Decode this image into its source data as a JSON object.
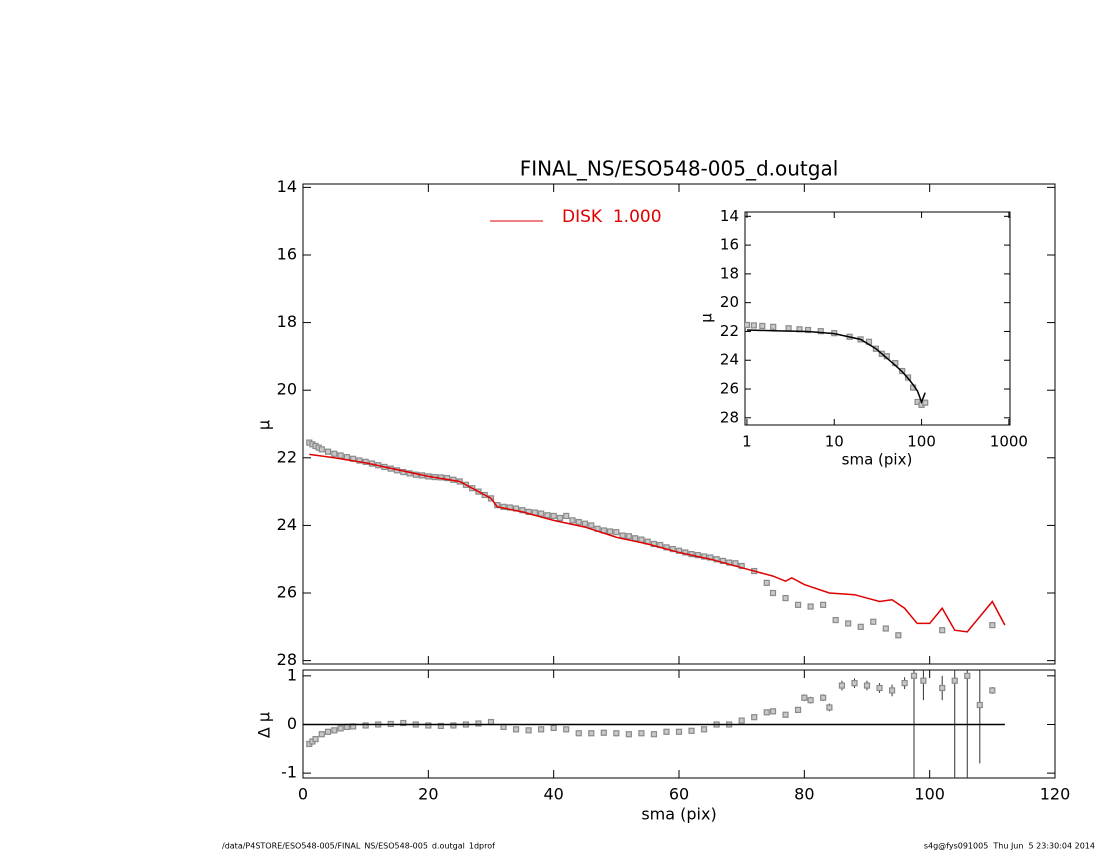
{
  "chart_data": [
    {
      "type": "scatter",
      "title": "FINAL_NS/ESO548-005_d.outgal",
      "ylabel": "μ",
      "xlim": [
        0,
        120
      ],
      "xticks": [
        0,
        20,
        40,
        60,
        80,
        100,
        120
      ],
      "xtick_labels": false,
      "ylim": [
        28.1,
        13.9
      ],
      "yticks": [
        14,
        16,
        18,
        20,
        22,
        24,
        26,
        28
      ],
      "series": [
        {
          "mode": "markers",
          "color": "#8a8a8a",
          "x": [
            1,
            1.5,
            2,
            2.5,
            3,
            4,
            5,
            6,
            7,
            8,
            9,
            10,
            11,
            12,
            13,
            14,
            15,
            16,
            17,
            18,
            19,
            20,
            21,
            22,
            23,
            24,
            25,
            26,
            27,
            28,
            29,
            30,
            31,
            32,
            33,
            34,
            35,
            36,
            37,
            38,
            39,
            40,
            41,
            42,
            43,
            44,
            45,
            46,
            47,
            48,
            49,
            50,
            51,
            52,
            53,
            54,
            55,
            56,
            57,
            58,
            59,
            60,
            61,
            62,
            63,
            64,
            65,
            66,
            67,
            68,
            69,
            70,
            72,
            74,
            75,
            77,
            79,
            81,
            83,
            85,
            87,
            89,
            91,
            93,
            95,
            102,
            110
          ],
          "values": [
            21.55,
            21.6,
            21.65,
            21.7,
            21.75,
            21.82,
            21.88,
            21.93,
            21.98,
            22.03,
            22.08,
            22.12,
            22.17,
            22.22,
            22.27,
            22.32,
            22.37,
            22.42,
            22.46,
            22.5,
            22.52,
            22.55,
            22.57,
            22.58,
            22.6,
            22.65,
            22.7,
            22.8,
            22.9,
            23.0,
            23.1,
            23.2,
            23.4,
            23.45,
            23.47,
            23.5,
            23.55,
            23.6,
            23.62,
            23.65,
            23.7,
            23.72,
            23.78,
            23.72,
            23.85,
            23.9,
            23.95,
            24.0,
            24.1,
            24.15,
            24.18,
            24.2,
            24.3,
            24.32,
            24.38,
            24.42,
            24.48,
            24.55,
            24.58,
            24.65,
            24.7,
            24.75,
            24.8,
            24.85,
            24.88,
            24.92,
            24.95,
            25.0,
            25.05,
            25.1,
            25.12,
            25.2,
            25.35,
            25.7,
            26.0,
            26.15,
            26.35,
            26.4,
            26.35,
            26.8,
            26.9,
            27.0,
            26.85,
            27.05,
            27.25,
            27.1,
            26.95
          ]
        },
        {
          "mode": "lines",
          "name": "DISK  1.000",
          "color": "#e00000",
          "x": [
            1,
            5,
            10,
            15,
            20,
            25,
            30,
            31,
            35,
            40,
            45,
            50,
            55,
            60,
            65,
            70,
            75,
            77,
            78,
            80,
            84,
            88,
            90,
            92,
            94,
            96,
            98,
            100,
            102,
            104,
            106,
            110,
            112
          ],
          "values": [
            21.9,
            22.0,
            22.15,
            22.35,
            22.55,
            22.7,
            23.2,
            23.45,
            23.6,
            23.85,
            24.05,
            24.35,
            24.55,
            24.8,
            25.0,
            25.25,
            25.5,
            25.65,
            25.55,
            25.75,
            26.0,
            26.05,
            26.15,
            26.25,
            26.2,
            26.45,
            26.9,
            26.9,
            26.45,
            27.1,
            27.15,
            26.25,
            26.95
          ]
        }
      ]
    },
    {
      "type": "scatter",
      "xlabel": "sma (pix)",
      "ylabel": "Δ μ",
      "xlim": [
        0,
        120
      ],
      "xticks": [
        0,
        20,
        40,
        60,
        80,
        100,
        120
      ],
      "ylim": [
        -1.1,
        1.12
      ],
      "yticks": [
        -1,
        0,
        1
      ],
      "series": [
        {
          "mode": "markers",
          "color": "#8a8a8a",
          "x": [
            1,
            1.5,
            2,
            3,
            4,
            5,
            6,
            7,
            8,
            10,
            12,
            14,
            16,
            18,
            20,
            22,
            24,
            26,
            28,
            30,
            32,
            34,
            36,
            38,
            40,
            42,
            44,
            46,
            48,
            50,
            52,
            54,
            56,
            58,
            60,
            62,
            64,
            66,
            68,
            70,
            72,
            74,
            75,
            77,
            79,
            80,
            81,
            83,
            84,
            86,
            88,
            90,
            92,
            94,
            96,
            97.5,
            99,
            102,
            104,
            106,
            108,
            110
          ],
          "values": [
            -0.4,
            -0.35,
            -0.3,
            -0.2,
            -0.15,
            -0.12,
            -0.08,
            -0.05,
            -0.04,
            -0.02,
            0,
            0.01,
            0.03,
            0,
            -0.02,
            -0.03,
            -0.02,
            0,
            0.02,
            0.05,
            -0.05,
            -0.1,
            -0.12,
            -0.1,
            -0.07,
            -0.1,
            -0.18,
            -0.18,
            -0.17,
            -0.18,
            -0.2,
            -0.18,
            -0.2,
            -0.15,
            -0.15,
            -0.13,
            -0.1,
            0,
            0,
            0.08,
            0.15,
            0.25,
            0.27,
            0.2,
            0.3,
            0.55,
            0.5,
            0.55,
            0.35,
            0.8,
            0.85,
            0.8,
            0.75,
            0.7,
            0.85,
            1.0,
            0.9,
            0.75,
            0.9,
            1.0,
            0.4,
            0.7
          ],
          "errors": [
            0.02,
            0.02,
            0.02,
            0.02,
            0.02,
            0.02,
            0.02,
            0.02,
            0.02,
            0.02,
            0.02,
            0.02,
            0.02,
            0.02,
            0.02,
            0.02,
            0.02,
            0.02,
            0.02,
            0.02,
            0.02,
            0.02,
            0.02,
            0.02,
            0.02,
            0.02,
            0.02,
            0.02,
            0.02,
            0.02,
            0.02,
            0.02,
            0.02,
            0.02,
            0.02,
            0.02,
            0.02,
            0.02,
            0.02,
            0.02,
            0.04,
            0.05,
            0.05,
            0.05,
            0.06,
            0.07,
            0.07,
            0.07,
            0.08,
            0.1,
            0.1,
            0.1,
            0.1,
            0.12,
            0.12,
            2.2,
            0.4,
            0.25,
            2.2,
            2.2,
            1.2,
            0.07
          ]
        },
        {
          "mode": "lines",
          "color": "#000000",
          "x": [
            0,
            112
          ],
          "values": [
            0,
            0
          ]
        }
      ]
    },
    {
      "type": "scatter",
      "xlabel": "sma (pix)",
      "ylabel": "μ",
      "xscale": "log",
      "xlim": [
        0.95,
        1030
      ],
      "xticks": [
        1,
        10,
        100,
        1000
      ],
      "ylim": [
        28.5,
        13.7
      ],
      "yticks": [
        14,
        16,
        18,
        20,
        22,
        24,
        26,
        28
      ],
      "series": [
        {
          "mode": "markers",
          "color": "#8a8a8a",
          "x": [
            1,
            1.2,
            1.5,
            2,
            3,
            4,
            5,
            7,
            10,
            15,
            20,
            25,
            30,
            35,
            40,
            50,
            60,
            70,
            80,
            90,
            100,
            110
          ],
          "values": [
            21.55,
            21.58,
            21.62,
            21.68,
            21.78,
            21.85,
            21.9,
            21.98,
            22.12,
            22.37,
            22.55,
            22.72,
            23.2,
            23.55,
            23.72,
            24.2,
            24.75,
            25.2,
            25.9,
            26.9,
            27.1,
            26.95
          ]
        },
        {
          "mode": "lines",
          "color": "#000000",
          "x": [
            1,
            2,
            5,
            10,
            20,
            30,
            40,
            50,
            60,
            70,
            80,
            90,
            100,
            110
          ],
          "values": [
            21.9,
            21.95,
            22.0,
            22.15,
            22.55,
            23.2,
            23.85,
            24.35,
            24.8,
            25.25,
            25.7,
            26.15,
            26.9,
            26.25
          ]
        }
      ]
    }
  ],
  "footer": {
    "left": "/data/P4STORE/ESO548-005/FINAL_NS/ESO548-005_d.outgal_1dprof",
    "right": "s4g@fys091005  Thu Jun  5 23:30:04 2014"
  }
}
